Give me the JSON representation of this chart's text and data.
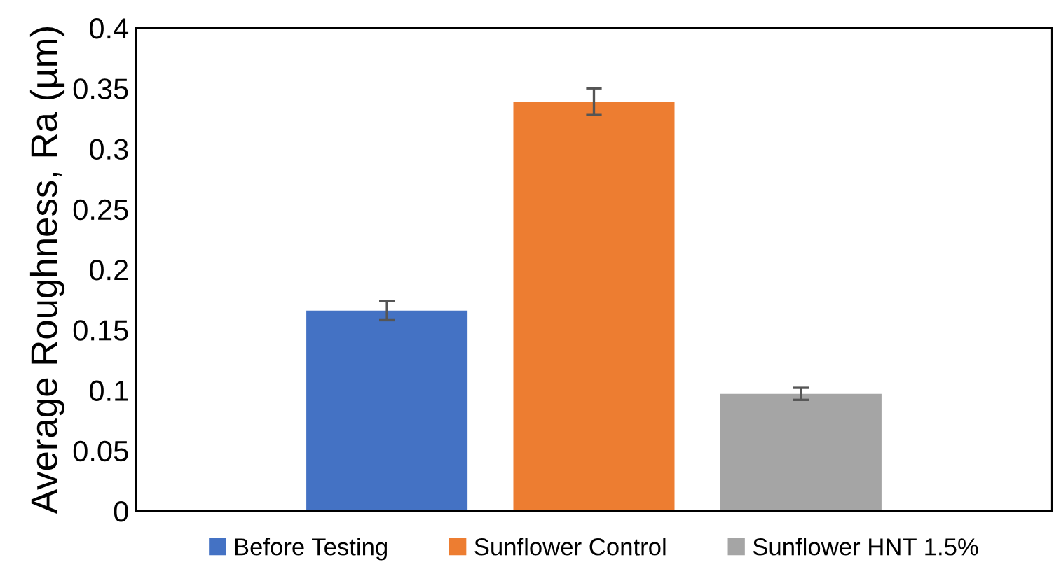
{
  "chart_data": {
    "type": "bar",
    "ylabel": "Average Roughness, Ra (µm)",
    "categories": [
      null
    ],
    "series": [
      {
        "name": "Before Testing",
        "color": "#4472c4",
        "values": [
          0.166
        ],
        "errors": [
          0.008
        ]
      },
      {
        "name": "Sunflower Control",
        "color": "#ed7d31",
        "values": [
          0.339
        ],
        "errors": [
          0.011
        ]
      },
      {
        "name": "Sunflower HNT 1.5%",
        "color": "#a5a5a5",
        "values": [
          0.097
        ],
        "errors": [
          0.005
        ]
      }
    ],
    "ylim": [
      0,
      0.4
    ],
    "yticks": [
      0,
      0.05,
      0.1,
      0.15,
      0.2,
      0.25,
      0.3,
      0.35,
      0.4
    ],
    "grid": false,
    "legend": "bottom"
  }
}
